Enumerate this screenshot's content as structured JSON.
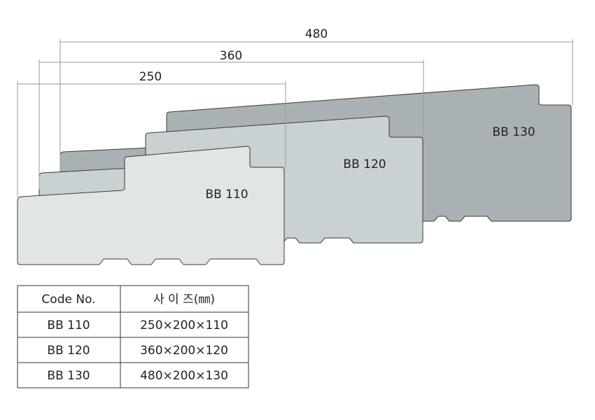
{
  "dimensions": [
    {
      "label": "480"
    },
    {
      "label": "360"
    },
    {
      "label": "250"
    }
  ],
  "profiles": [
    {
      "label": "BB 130"
    },
    {
      "label": "BB 120"
    },
    {
      "label": "BB 110"
    }
  ],
  "table": {
    "header": [
      "Code No.",
      "사 이 즈(㎜)"
    ],
    "rows": [
      [
        "BB 110",
        "250×200×110"
      ],
      [
        "BB 120",
        "360×200×120"
      ],
      [
        "BB 130",
        "480×200×130"
      ]
    ]
  }
}
